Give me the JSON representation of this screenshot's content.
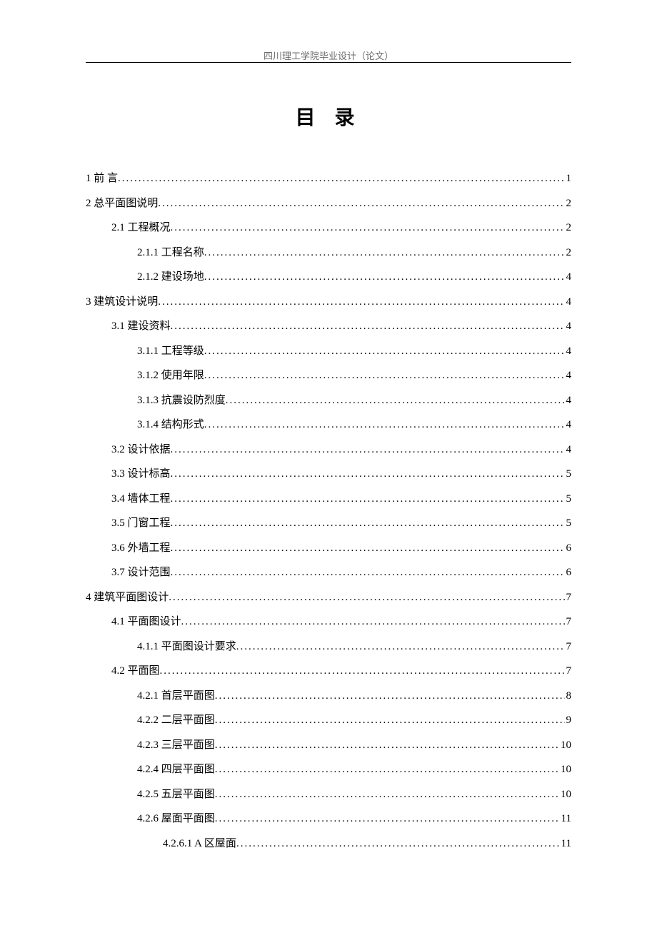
{
  "header": "四川理工学院毕业设计（论文）",
  "title": "目  录",
  "toc": [
    {
      "level": 0,
      "label": "1 前    言",
      "page": "1"
    },
    {
      "level": 0,
      "label": "2 总平面图说明",
      "page": "2"
    },
    {
      "level": 1,
      "label": "2.1 工程概况",
      "page": "2"
    },
    {
      "level": 2,
      "label": "2.1.1 工程名称",
      "page": "2"
    },
    {
      "level": 2,
      "label": "2.1.2 建设场地",
      "page": "4"
    },
    {
      "level": 0,
      "label": "3 建筑设计说明",
      "page": "4"
    },
    {
      "level": 1,
      "label": "3.1 建设资料",
      "page": "4"
    },
    {
      "level": 2,
      "label": "3.1.1 工程等级",
      "page": "4"
    },
    {
      "level": 2,
      "label": "3.1.2 使用年限",
      "page": "4"
    },
    {
      "level": 2,
      "label": "3.1.3 抗震设防烈度",
      "page": "4"
    },
    {
      "level": 2,
      "label": "3.1.4 结构形式",
      "page": "4"
    },
    {
      "level": 1,
      "label": "3.2 设计依据",
      "page": "4"
    },
    {
      "level": 1,
      "label": "3.3 设计标高",
      "page": "5"
    },
    {
      "level": 1,
      "label": "3.4 墙体工程",
      "page": "5"
    },
    {
      "level": 1,
      "label": "3.5 门窗工程",
      "page": "5"
    },
    {
      "level": 1,
      "label": "3.6 外墙工程",
      "page": "6"
    },
    {
      "level": 1,
      "label": "3.7 设计范围",
      "page": "6"
    },
    {
      "level": 0,
      "label": "4 建筑平面图设计",
      "page": "7"
    },
    {
      "level": 1,
      "label": "4.1 平面图设计",
      "page": "7"
    },
    {
      "level": 2,
      "label": "4.1.1 平面图设计要求",
      "page": "7"
    },
    {
      "level": 1,
      "label": "4.2 平面图",
      "page": "7"
    },
    {
      "level": 2,
      "label": "4.2.1 首层平面图",
      "page": "8"
    },
    {
      "level": 2,
      "label": "4.2.2 二层平面图",
      "page": "9"
    },
    {
      "level": 2,
      "label": "4.2.3 三层平面图",
      "page": "10"
    },
    {
      "level": 2,
      "label": "4.2.4 四层平面图",
      "page": "10"
    },
    {
      "level": 2,
      "label": "4.2.5 五层平面图",
      "page": "10"
    },
    {
      "level": 2,
      "label": "4.2.6 屋面平面图",
      "page": "11"
    },
    {
      "level": 3,
      "label": "4.2.6.1 A 区屋面",
      "page": "11"
    }
  ]
}
